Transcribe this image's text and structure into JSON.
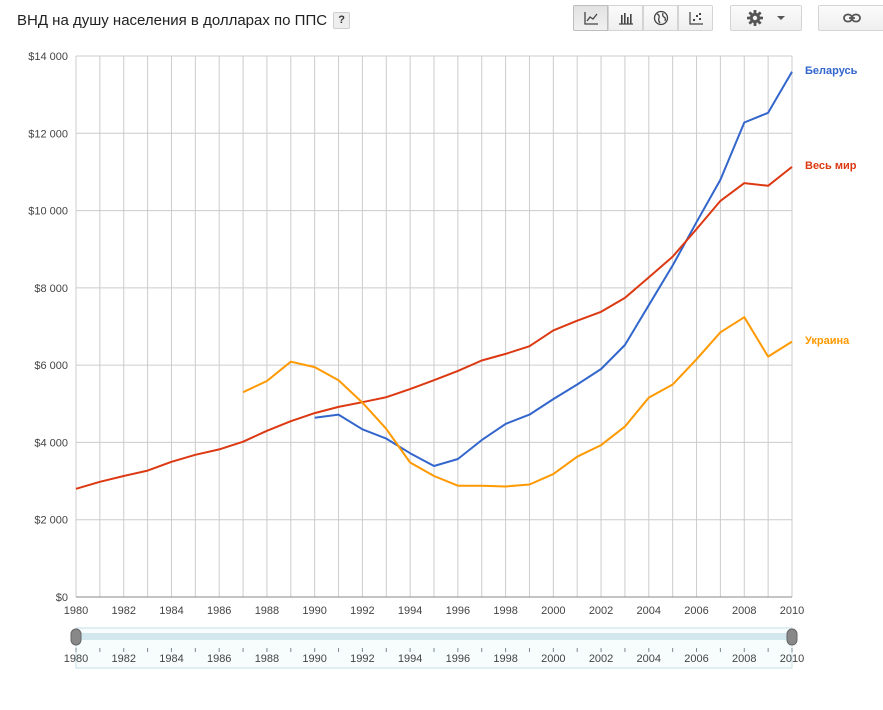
{
  "header": {
    "title": "ВНД на душу населения в долларах по ППС",
    "help_label": "?"
  },
  "toolbar": {
    "chart_type_buttons": [
      {
        "icon": "line-chart-icon",
        "active": true
      },
      {
        "icon": "bar-chart-icon",
        "active": false
      },
      {
        "icon": "globe-icon",
        "active": false
      },
      {
        "icon": "scatter-chart-icon",
        "active": false
      }
    ],
    "settings_icon": "gear-icon",
    "link_icon": "link-icon"
  },
  "colors": {
    "belarus": "#3366cc",
    "world": "#dc3912",
    "ukraine": "#ff9900",
    "grid": "#cccccc"
  },
  "chart_data": {
    "type": "line",
    "title": "ВНД на душу населения в долларах по ППС",
    "xlabel": "",
    "ylabel": "",
    "xlim": [
      1980,
      2010
    ],
    "ylim": [
      0,
      14000
    ],
    "y_ticks": [
      {
        "value": 0,
        "label": "$0"
      },
      {
        "value": 2000,
        "label": "$2 000"
      },
      {
        "value": 4000,
        "label": "$4 000"
      },
      {
        "value": 6000,
        "label": "$6 000"
      },
      {
        "value": 8000,
        "label": "$8 000"
      },
      {
        "value": 10000,
        "label": "$10 000"
      },
      {
        "value": 12000,
        "label": "$12 000"
      },
      {
        "value": 14000,
        "label": "$14 000"
      }
    ],
    "x_ticks": [
      "1980",
      "1982",
      "1984",
      "1986",
      "1988",
      "1990",
      "1992",
      "1994",
      "1996",
      "1998",
      "2000",
      "2002",
      "2004",
      "2006",
      "2008",
      "2010"
    ],
    "grid": true,
    "legend": "inline-right",
    "series": [
      {
        "name": "Беларусь",
        "color": "#3366cc",
        "x": [
          1990,
          1991,
          1992,
          1993,
          1994,
          1995,
          1996,
          1997,
          1998,
          1999,
          2000,
          2001,
          2002,
          2003,
          2004,
          2005,
          2006,
          2007,
          2008,
          2009,
          2010
        ],
        "values": [
          4640,
          4720,
          4340,
          4100,
          3720,
          3390,
          3570,
          4060,
          4480,
          4720,
          5120,
          5500,
          5900,
          6520,
          7550,
          8580,
          9700,
          10800,
          12280,
          12530,
          13590
        ]
      },
      {
        "name": "Весь мир",
        "color": "#dc3912",
        "x": [
          1980,
          1981,
          1982,
          1983,
          1984,
          1985,
          1986,
          1987,
          1988,
          1989,
          1990,
          1991,
          1992,
          1993,
          1994,
          1995,
          1996,
          1997,
          1998,
          1999,
          2000,
          2001,
          2002,
          2003,
          2004,
          2005,
          2006,
          2007,
          2008,
          2009,
          2010
        ],
        "values": [
          2800,
          2980,
          3130,
          3270,
          3500,
          3680,
          3820,
          4020,
          4300,
          4550,
          4760,
          4920,
          5040,
          5170,
          5380,
          5610,
          5850,
          6120,
          6290,
          6490,
          6900,
          7150,
          7380,
          7740,
          8270,
          8810,
          9520,
          10250,
          10710,
          10640,
          11130
        ]
      },
      {
        "name": "Украина",
        "color": "#ff9900",
        "x": [
          1987,
          1988,
          1989,
          1990,
          1991,
          1992,
          1993,
          1994,
          1995,
          1996,
          1997,
          1998,
          1999,
          2000,
          2001,
          2002,
          2003,
          2004,
          2005,
          2006,
          2007,
          2008,
          2009,
          2010
        ],
        "values": [
          5300,
          5590,
          6090,
          5950,
          5610,
          5030,
          4350,
          3480,
          3130,
          2880,
          2880,
          2860,
          2910,
          3180,
          3630,
          3930,
          4410,
          5160,
          5500,
          6150,
          6850,
          7240,
          6220,
          6610
        ]
      }
    ]
  },
  "timeline": {
    "labels": [
      "1980",
      "1982",
      "1984",
      "1986",
      "1988",
      "1990",
      "1992",
      "1994",
      "1996",
      "1998",
      "2000",
      "2002",
      "2004",
      "2006",
      "2008",
      "2010"
    ],
    "start_year": 1980,
    "end_year": 2010
  }
}
